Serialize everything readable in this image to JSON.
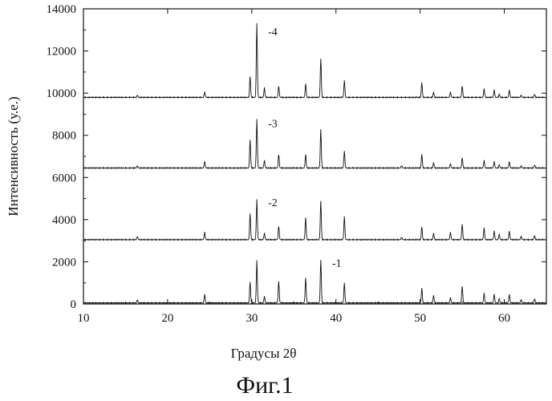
{
  "figure": {
    "caption": "Фиг.1"
  },
  "chart_data": {
    "type": "line",
    "xlabel": "Градусы 2θ",
    "ylabel": "Интенсивность (у.е.)",
    "xlim": [
      10,
      65
    ],
    "ylim": [
      0,
      14000
    ],
    "x_ticks": [
      10,
      20,
      30,
      40,
      50,
      60
    ],
    "y_ticks": [
      0,
      2000,
      4000,
      6000,
      8000,
      10000,
      12000,
      14000
    ],
    "grid": false,
    "series": [
      {
        "name": "-1",
        "baseline": 50,
        "peaks": [
          [
            16.4,
            150
          ],
          [
            24.4,
            400
          ],
          [
            29.8,
            1000
          ],
          [
            30.6,
            2000
          ],
          [
            31.5,
            300
          ],
          [
            33.2,
            1050
          ],
          [
            36.4,
            1200
          ],
          [
            38.2,
            2050
          ],
          [
            41.0,
            950
          ],
          [
            50.2,
            700
          ],
          [
            51.6,
            350
          ],
          [
            53.6,
            250
          ],
          [
            55.0,
            800
          ],
          [
            57.6,
            450
          ],
          [
            58.8,
            400
          ],
          [
            59.4,
            200
          ],
          [
            60.6,
            400
          ],
          [
            62.0,
            150
          ],
          [
            63.6,
            200
          ]
        ]
      },
      {
        "name": "-2",
        "baseline": 3050,
        "peaks": [
          [
            16.4,
            150
          ],
          [
            24.4,
            350
          ],
          [
            29.8,
            1250
          ],
          [
            30.6,
            1900
          ],
          [
            31.5,
            300
          ],
          [
            33.2,
            650
          ],
          [
            36.4,
            1050
          ],
          [
            38.2,
            1850
          ],
          [
            41.0,
            1100
          ],
          [
            47.8,
            100
          ],
          [
            50.2,
            600
          ],
          [
            51.6,
            300
          ],
          [
            53.6,
            350
          ],
          [
            55.0,
            750
          ],
          [
            57.6,
            550
          ],
          [
            58.8,
            400
          ],
          [
            59.4,
            250
          ],
          [
            60.6,
            400
          ],
          [
            62.0,
            150
          ],
          [
            63.6,
            200
          ]
        ]
      },
      {
        "name": "-3",
        "baseline": 6450,
        "peaks": [
          [
            16.4,
            100
          ],
          [
            24.4,
            300
          ],
          [
            29.8,
            1350
          ],
          [
            30.6,
            2300
          ],
          [
            31.5,
            350
          ],
          [
            33.2,
            650
          ],
          [
            36.4,
            650
          ],
          [
            38.2,
            1850
          ],
          [
            41.0,
            800
          ],
          [
            47.8,
            100
          ],
          [
            50.2,
            650
          ],
          [
            51.6,
            250
          ],
          [
            53.6,
            200
          ],
          [
            55.0,
            500
          ],
          [
            57.6,
            350
          ],
          [
            58.8,
            300
          ],
          [
            59.4,
            150
          ],
          [
            60.6,
            300
          ],
          [
            62.0,
            100
          ],
          [
            63.6,
            150
          ]
        ]
      },
      {
        "name": "-4",
        "baseline": 9800,
        "peaks": [
          [
            16.4,
            100
          ],
          [
            24.4,
            250
          ],
          [
            29.8,
            1000
          ],
          [
            30.6,
            3500
          ],
          [
            31.5,
            450
          ],
          [
            33.2,
            550
          ],
          [
            36.4,
            650
          ],
          [
            38.2,
            1850
          ],
          [
            41.0,
            800
          ],
          [
            50.2,
            700
          ],
          [
            51.6,
            250
          ],
          [
            53.6,
            250
          ],
          [
            55.0,
            550
          ],
          [
            57.6,
            400
          ],
          [
            58.8,
            350
          ],
          [
            59.4,
            150
          ],
          [
            60.6,
            350
          ],
          [
            62.0,
            100
          ],
          [
            63.6,
            150
          ]
        ]
      }
    ]
  }
}
